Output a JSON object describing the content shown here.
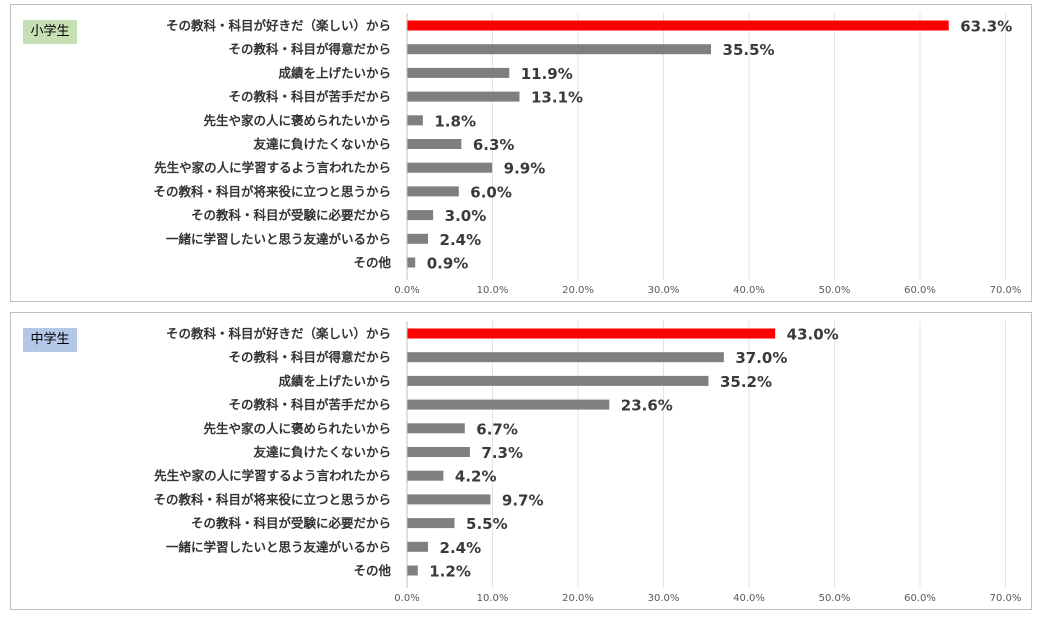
{
  "chart_data": [
    {
      "type": "bar",
      "orientation": "horizontal",
      "badge": "小学生",
      "badge_color": "#c6e0b4",
      "highlight_color": "#ff0000",
      "bar_color": "#7f7f7f",
      "categories": [
        "その教科・科目が好きだ（楽しい）から",
        "その教科・科目が得意だから",
        "成績を上げたいから",
        "その教科・科目が苦手だから",
        "先生や家の人に褒められたいから",
        "友達に負けたくないから",
        "先生や家の人に学習するよう言われたから",
        "その教科・科目が将来役に立つと思うから",
        "その教科・科目が受験に必要だから",
        "一緒に学習したいと思う友達がいるから",
        "その他"
      ],
      "values": [
        63.3,
        35.5,
        11.9,
        13.1,
        1.8,
        6.3,
        9.9,
        6.0,
        3.0,
        2.4,
        0.9
      ],
      "value_labels": [
        "63.3%",
        "35.5%",
        "11.9%",
        "13.1%",
        "1.8%",
        "6.3%",
        "9.9%",
        "6.0%",
        "3.0%",
        "2.4%",
        "0.9%"
      ],
      "xlim": [
        0,
        70
      ],
      "x_ticks": [
        "0.0%",
        "10.0%",
        "20.0%",
        "30.0%",
        "40.0%",
        "50.0%",
        "60.0%",
        "70.0%"
      ],
      "grid": true
    },
    {
      "type": "bar",
      "orientation": "horizontal",
      "badge": "中学生",
      "badge_color": "#b4c7e7",
      "highlight_color": "#ff0000",
      "bar_color": "#7f7f7f",
      "categories": [
        "その教科・科目が好きだ（楽しい）から",
        "その教科・科目が得意だから",
        "成績を上げたいから",
        "その教科・科目が苦手だから",
        "先生や家の人に褒められたいから",
        "友達に負けたくないから",
        "先生や家の人に学習するよう言われたから",
        "その教科・科目が将来役に立つと思うから",
        "その教科・科目が受験に必要だから",
        "一緒に学習したいと思う友達がいるから",
        "その他"
      ],
      "values": [
        43.0,
        37.0,
        35.2,
        23.6,
        6.7,
        7.3,
        4.2,
        9.7,
        5.5,
        2.4,
        1.2
      ],
      "value_labels": [
        "43.0%",
        "37.0%",
        "35.2%",
        "23.6%",
        "6.7%",
        "7.3%",
        "4.2%",
        "9.7%",
        "5.5%",
        "2.4%",
        "1.2%"
      ],
      "xlim": [
        0,
        70
      ],
      "x_ticks": [
        "0.0%",
        "10.0%",
        "20.0%",
        "30.0%",
        "40.0%",
        "50.0%",
        "60.0%",
        "70.0%"
      ],
      "grid": true
    }
  ]
}
